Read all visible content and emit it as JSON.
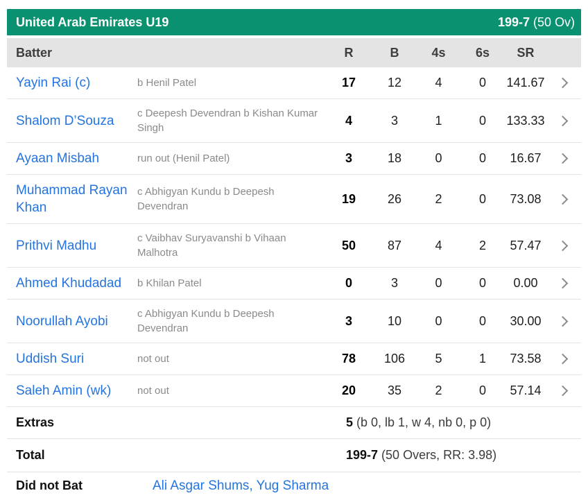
{
  "team_header": {
    "team": "United Arab Emirates U19",
    "score": "199-7",
    "overs": "(50 Ov)"
  },
  "columns": {
    "batter": "Batter",
    "runs": "R",
    "balls": "B",
    "fours": "4s",
    "sixes": "6s",
    "strike_rate": "SR"
  },
  "batting": {
    "rows": [
      {
        "name": "Yayin Rai (c)",
        "dismissal": "b Henil Patel",
        "runs": "17",
        "balls": "12",
        "fours": "4",
        "sixes": "0",
        "strike_rate": "141.67"
      },
      {
        "name": "Shalom D’Souza",
        "dismissal": "c Deepesh Devendran b Kishan Kumar Singh",
        "runs": "4",
        "balls": "3",
        "fours": "1",
        "sixes": "0",
        "strike_rate": "133.33"
      },
      {
        "name": "Ayaan Misbah",
        "dismissal": "run out (Henil Patel)",
        "runs": "3",
        "balls": "18",
        "fours": "0",
        "sixes": "0",
        "strike_rate": "16.67"
      },
      {
        "name": "Muhammad Rayan Khan",
        "dismissal": "c Abhigyan Kundu b Deepesh Devendran",
        "runs": "19",
        "balls": "26",
        "fours": "2",
        "sixes": "0",
        "strike_rate": "73.08"
      },
      {
        "name": "Prithvi Madhu",
        "dismissal": "c Vaibhav Suryavanshi b Vihaan Malhotra",
        "runs": "50",
        "balls": "87",
        "fours": "4",
        "sixes": "2",
        "strike_rate": "57.47"
      },
      {
        "name": "Ahmed Khudadad",
        "dismissal": "b Khilan Patel",
        "runs": "0",
        "balls": "3",
        "fours": "0",
        "sixes": "0",
        "strike_rate": "0.00"
      },
      {
        "name": "Noorullah Ayobi",
        "dismissal": "c Abhigyan Kundu b Deepesh Devendran",
        "runs": "3",
        "balls": "10",
        "fours": "0",
        "sixes": "0",
        "strike_rate": "30.00"
      },
      {
        "name": "Uddish Suri",
        "dismissal": "not out",
        "runs": "78",
        "balls": "106",
        "fours": "5",
        "sixes": "1",
        "strike_rate": "73.58"
      },
      {
        "name": "Saleh Amin (wk)",
        "dismissal": "not out",
        "runs": "20",
        "balls": "35",
        "fours": "2",
        "sixes": "0",
        "strike_rate": "57.14"
      }
    ]
  },
  "extras": {
    "label": "Extras",
    "runs": "5",
    "detail": "(b 0, lb 1, w 4, nb 0, p 0)"
  },
  "total": {
    "label": "Total",
    "score": "199-7",
    "detail": "(50 Overs, RR: 3.98)"
  },
  "did_not_bat": {
    "label": "Did not Bat",
    "players": "Ali Asgar Shums, Yug Sharma"
  },
  "colors": {
    "header_green": "#0a9170",
    "link_blue": "#2374e1"
  }
}
